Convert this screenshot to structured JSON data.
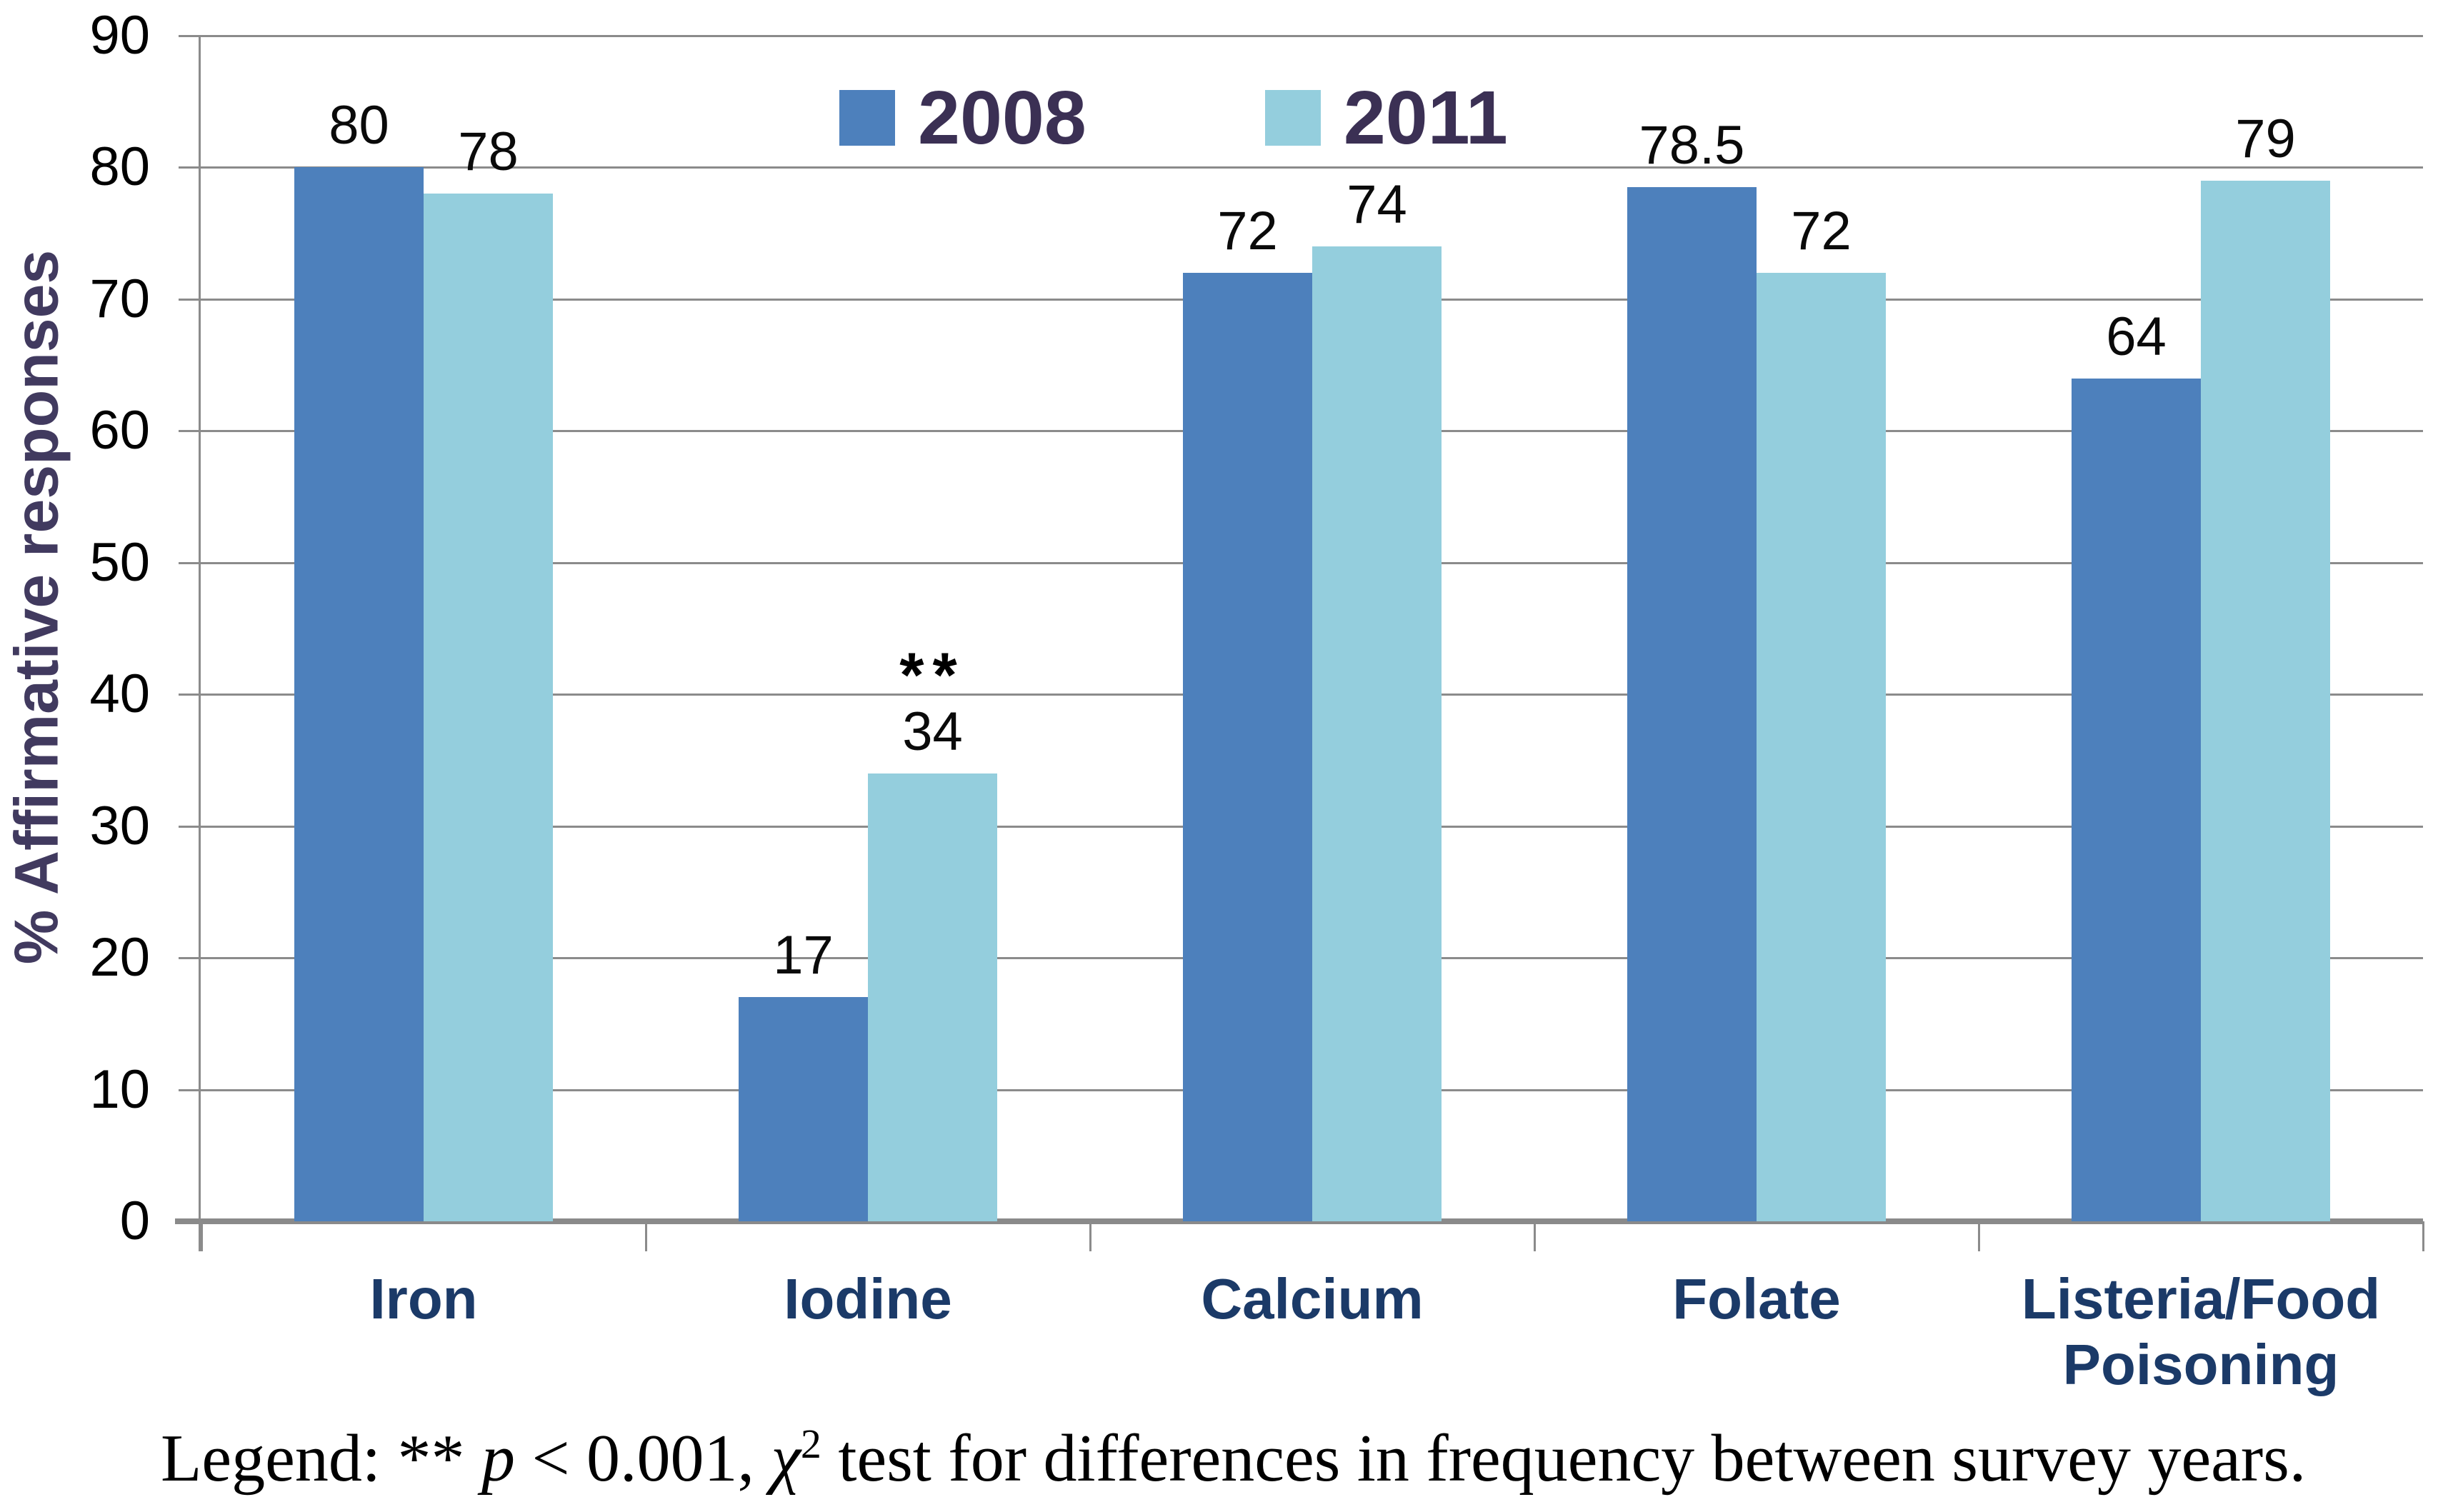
{
  "chart_data": {
    "type": "bar",
    "title": "",
    "categories": [
      "Iron",
      "Iodine",
      "Calcium",
      "Folate",
      "Listeria/Food Poisoning"
    ],
    "category_labels": [
      "Iron",
      "Iodine",
      "Calcium",
      "Folate",
      "Listeria/Food\nPoisoning"
    ],
    "series": [
      {
        "name": "2008",
        "color": "#4D80BC",
        "values": [
          80,
          17,
          72,
          78.5,
          64
        ]
      },
      {
        "name": "2011",
        "color": "#94CEDD",
        "values": [
          78,
          34,
          74,
          72,
          79
        ]
      }
    ],
    "value_labels": [
      [
        "80",
        "17",
        "72",
        "78.5",
        "64"
      ],
      [
        "78",
        "34",
        "74",
        "72",
        "79"
      ]
    ],
    "annotations": [
      {
        "text": "**",
        "series_index": 1,
        "category_index": 1
      }
    ],
    "xlabel": "",
    "ylabel": "% Affirmative responses",
    "ylim": [
      0,
      90
    ],
    "yticks": [
      0,
      10,
      20,
      30,
      40,
      50,
      60,
      70,
      80,
      90
    ],
    "grid": true,
    "legend_position": "top-center",
    "footnote": "Legend: ** p < 0.001, χ² test for differences in frequency between survey years."
  },
  "legend": {
    "items": [
      {
        "label": "2008",
        "color": "#4D80BC"
      },
      {
        "label": "2011",
        "color": "#94CEDD"
      }
    ]
  },
  "footnote_segments": {
    "prefix": "Legend: ** ",
    "p": "p",
    "mid": " < 0.001, ",
    "chi": "χ",
    "exp": "2",
    "suffix": " test for differences in frequency between survey years."
  },
  "colors": {
    "bar_2008": "#4D80BC",
    "bar_2011": "#94CEDD",
    "gridline": "#8B8B8B",
    "axis_line": "#8A8A8A",
    "tick_label": "#000000",
    "value_label": "#0a0a0a",
    "category_label": "#1B3A68",
    "legend_text": "#3B3054",
    "y_axis_title": "#413A5F",
    "background": "#ffffff"
  }
}
